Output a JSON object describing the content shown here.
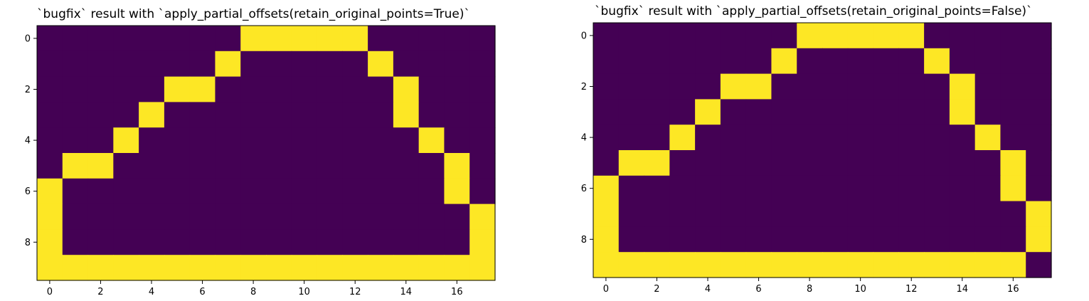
{
  "chart_data": [
    {
      "type": "heatmap",
      "title": "`bugfix` result with `apply_partial_offsets(retain_original_points=True)`",
      "rows": 10,
      "cols": 18,
      "x_ticks": [
        0,
        2,
        4,
        6,
        8,
        10,
        12,
        14,
        16
      ],
      "y_ticks": [
        0,
        2,
        4,
        6,
        8
      ],
      "colors": {
        "0": "#440154",
        "1": "#fde725"
      },
      "grid": [
        [
          0,
          0,
          0,
          0,
          0,
          0,
          0,
          0,
          1,
          1,
          1,
          1,
          1,
          0,
          0,
          0,
          0,
          0
        ],
        [
          0,
          0,
          0,
          0,
          0,
          0,
          0,
          1,
          0,
          0,
          0,
          0,
          0,
          1,
          0,
          0,
          0,
          0
        ],
        [
          0,
          0,
          0,
          0,
          0,
          1,
          1,
          0,
          0,
          0,
          0,
          0,
          0,
          0,
          1,
          0,
          0,
          0
        ],
        [
          0,
          0,
          0,
          0,
          1,
          0,
          0,
          0,
          0,
          0,
          0,
          0,
          0,
          0,
          1,
          0,
          0,
          0
        ],
        [
          0,
          0,
          0,
          1,
          0,
          0,
          0,
          0,
          0,
          0,
          0,
          0,
          0,
          0,
          0,
          1,
          0,
          0
        ],
        [
          0,
          1,
          1,
          0,
          0,
          0,
          0,
          0,
          0,
          0,
          0,
          0,
          0,
          0,
          0,
          0,
          1,
          0
        ],
        [
          1,
          0,
          0,
          0,
          0,
          0,
          0,
          0,
          0,
          0,
          0,
          0,
          0,
          0,
          0,
          0,
          1,
          0
        ],
        [
          1,
          0,
          0,
          0,
          0,
          0,
          0,
          0,
          0,
          0,
          0,
          0,
          0,
          0,
          0,
          0,
          0,
          1
        ],
        [
          1,
          0,
          0,
          0,
          0,
          0,
          0,
          0,
          0,
          0,
          0,
          0,
          0,
          0,
          0,
          0,
          0,
          1
        ],
        [
          1,
          1,
          1,
          1,
          1,
          1,
          1,
          1,
          1,
          1,
          1,
          1,
          1,
          1,
          1,
          1,
          1,
          1
        ]
      ]
    },
    {
      "type": "heatmap",
      "title": "`bugfix` result with `apply_partial_offsets(retain_original_points=False)`",
      "rows": 10,
      "cols": 18,
      "x_ticks": [
        0,
        2,
        4,
        6,
        8,
        10,
        12,
        14,
        16
      ],
      "y_ticks": [
        0,
        2,
        4,
        6,
        8
      ],
      "colors": {
        "0": "#440154",
        "1": "#fde725"
      },
      "grid": [
        [
          0,
          0,
          0,
          0,
          0,
          0,
          0,
          0,
          1,
          1,
          1,
          1,
          1,
          0,
          0,
          0,
          0,
          0
        ],
        [
          0,
          0,
          0,
          0,
          0,
          0,
          0,
          1,
          0,
          0,
          0,
          0,
          0,
          1,
          0,
          0,
          0,
          0
        ],
        [
          0,
          0,
          0,
          0,
          0,
          1,
          1,
          0,
          0,
          0,
          0,
          0,
          0,
          0,
          1,
          0,
          0,
          0
        ],
        [
          0,
          0,
          0,
          0,
          1,
          0,
          0,
          0,
          0,
          0,
          0,
          0,
          0,
          0,
          1,
          0,
          0,
          0
        ],
        [
          0,
          0,
          0,
          1,
          0,
          0,
          0,
          0,
          0,
          0,
          0,
          0,
          0,
          0,
          0,
          1,
          0,
          0
        ],
        [
          0,
          1,
          1,
          0,
          0,
          0,
          0,
          0,
          0,
          0,
          0,
          0,
          0,
          0,
          0,
          0,
          1,
          0
        ],
        [
          1,
          0,
          0,
          0,
          0,
          0,
          0,
          0,
          0,
          0,
          0,
          0,
          0,
          0,
          0,
          0,
          1,
          0
        ],
        [
          1,
          0,
          0,
          0,
          0,
          0,
          0,
          0,
          0,
          0,
          0,
          0,
          0,
          0,
          0,
          0,
          0,
          1
        ],
        [
          1,
          0,
          0,
          0,
          0,
          0,
          0,
          0,
          0,
          0,
          0,
          0,
          0,
          0,
          0,
          0,
          0,
          1
        ],
        [
          1,
          1,
          1,
          1,
          1,
          1,
          1,
          1,
          1,
          1,
          1,
          1,
          1,
          1,
          1,
          1,
          1,
          0
        ]
      ]
    }
  ]
}
